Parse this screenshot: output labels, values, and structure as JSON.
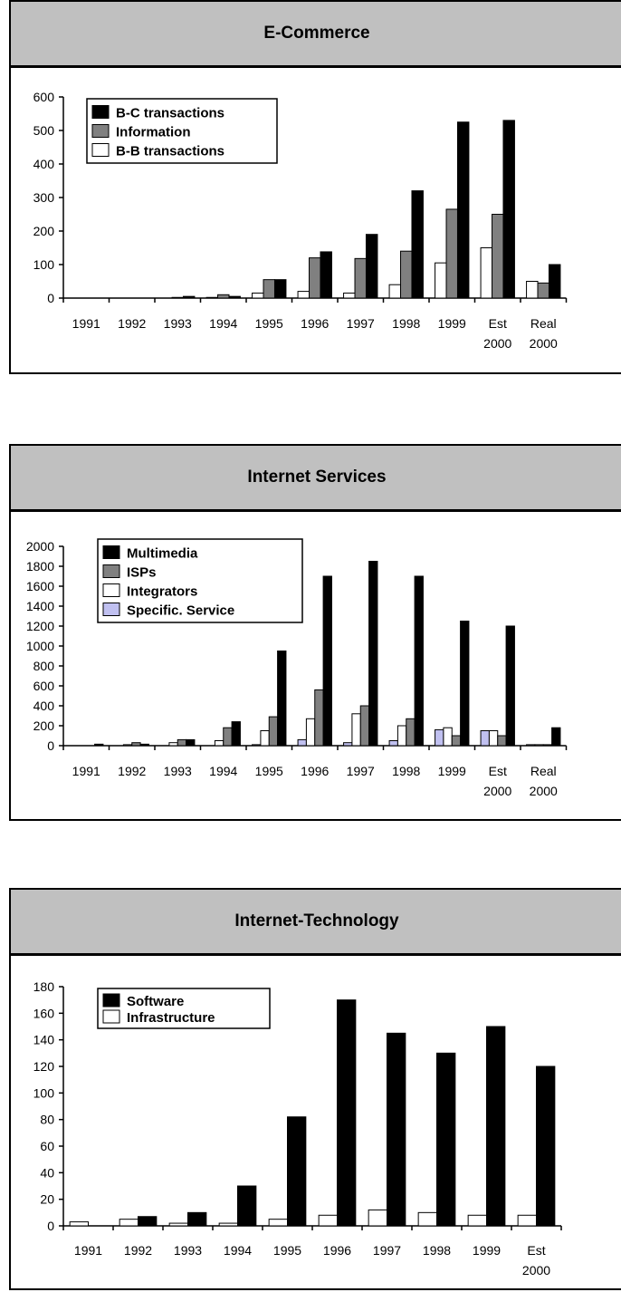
{
  "charts": [
    {
      "title": "E-Commerce",
      "chart_data": {
        "type": "bar",
        "categories": [
          [
            "1991"
          ],
          [
            "1992"
          ],
          [
            "1993"
          ],
          [
            "1994"
          ],
          [
            "1995"
          ],
          [
            "1996"
          ],
          [
            "1997"
          ],
          [
            "1998"
          ],
          [
            "1999"
          ],
          [
            "Est",
            "2000"
          ],
          [
            "Real",
            "2000"
          ]
        ],
        "ylim": [
          0,
          600
        ],
        "yticks": [
          0,
          100,
          200,
          300,
          400,
          500,
          600
        ],
        "legend": "top-left",
        "series": [
          {
            "name": "B-B transactions",
            "color": "#ffffff",
            "values": [
              0,
              0,
              0,
              2,
              15,
              20,
              15,
              40,
              105,
              150,
              50
            ]
          },
          {
            "name": "Information",
            "color": "#808080",
            "values": [
              0,
              0,
              2,
              10,
              55,
              120,
              118,
              140,
              265,
              250,
              45
            ]
          },
          {
            "name": "B-C transactions",
            "color": "#000000",
            "values": [
              0,
              0,
              5,
              5,
              55,
              138,
              190,
              320,
              525,
              530,
              100
            ]
          }
        ],
        "legend_order": [
          2,
          1,
          0
        ]
      }
    },
    {
      "title": "Internet Services",
      "chart_data": {
        "type": "bar",
        "categories": [
          [
            "1991"
          ],
          [
            "1992"
          ],
          [
            "1993"
          ],
          [
            "1994"
          ],
          [
            "1995"
          ],
          [
            "1996"
          ],
          [
            "1997"
          ],
          [
            "1998"
          ],
          [
            "1999"
          ],
          [
            "Est",
            "2000"
          ],
          [
            "Real",
            "2000"
          ]
        ],
        "ylim": [
          0,
          2000
        ],
        "yticks": [
          0,
          200,
          400,
          600,
          800,
          1000,
          1200,
          1400,
          1600,
          1800,
          2000
        ],
        "legend": "top-left",
        "series": [
          {
            "name": "Specific. Service",
            "color": "#c0c0f0",
            "values": [
              0,
              0,
              0,
              0,
              10,
              60,
              30,
              50,
              160,
              150,
              10
            ]
          },
          {
            "name": "Integrators",
            "color": "#ffffff",
            "values": [
              0,
              10,
              30,
              50,
              150,
              270,
              320,
              200,
              180,
              150,
              10
            ]
          },
          {
            "name": "ISPs",
            "color": "#808080",
            "values": [
              0,
              30,
              60,
              180,
              290,
              560,
              400,
              270,
              100,
              100,
              10
            ]
          },
          {
            "name": "Multimedia",
            "color": "#000000",
            "values": [
              15,
              15,
              60,
              240,
              950,
              1700,
              1850,
              1700,
              1250,
              1200,
              180
            ]
          }
        ],
        "legend_order": [
          3,
          2,
          1,
          0
        ]
      }
    },
    {
      "title": "Internet-Technology",
      "chart_data": {
        "type": "bar",
        "categories": [
          [
            "1991"
          ],
          [
            "1992"
          ],
          [
            "1993"
          ],
          [
            "1994"
          ],
          [
            "1995"
          ],
          [
            "1996"
          ],
          [
            "1997"
          ],
          [
            "1998"
          ],
          [
            "1999"
          ],
          [
            "Est",
            "2000"
          ]
        ],
        "ylim": [
          0,
          180
        ],
        "yticks": [
          0,
          20,
          40,
          60,
          80,
          100,
          120,
          140,
          160,
          180
        ],
        "legend": "top-left",
        "series": [
          {
            "name": "Infrastructure",
            "color": "#ffffff",
            "values": [
              3,
              5,
              2,
              2,
              5,
              8,
              12,
              10,
              8,
              8
            ]
          },
          {
            "name": "Software",
            "color": "#000000",
            "values": [
              0,
              7,
              10,
              30,
              82,
              170,
              145,
              130,
              150,
              120
            ]
          }
        ],
        "legend_order": [
          1,
          0
        ]
      }
    }
  ]
}
